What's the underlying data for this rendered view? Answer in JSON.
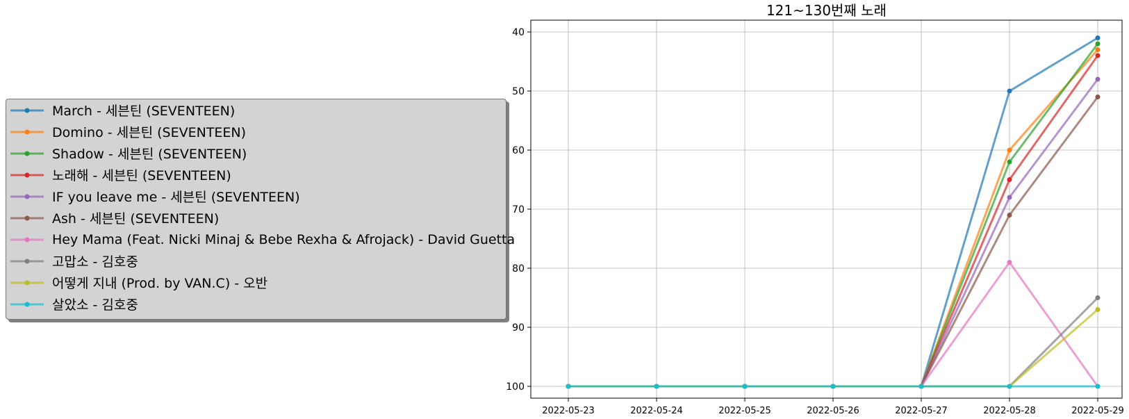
{
  "chart_data": {
    "type": "line",
    "title": "121~130번째 노래",
    "xlabel": "",
    "ylabel": "",
    "x": [
      "2022-05-23",
      "2022-05-24",
      "2022-05-25",
      "2022-05-26",
      "2022-05-27",
      "2022-05-28",
      "2022-05-29"
    ],
    "y_inverted": true,
    "ylim": [
      102,
      38
    ],
    "y_ticks": [
      40,
      50,
      60,
      70,
      80,
      90,
      100
    ],
    "grid": true,
    "legend_placement": "left, outside plot",
    "series": [
      {
        "name": "March - 세븐틴 (SEVENTEEN)",
        "color": "#1f77b4",
        "values": [
          100,
          100,
          100,
          100,
          100,
          50,
          41
        ]
      },
      {
        "name": "Domino - 세븐틴 (SEVENTEEN)",
        "color": "#ff7f0e",
        "values": [
          100,
          100,
          100,
          100,
          100,
          60,
          43
        ]
      },
      {
        "name": "Shadow - 세븐틴 (SEVENTEEN)",
        "color": "#2ca02c",
        "values": [
          100,
          100,
          100,
          100,
          100,
          62,
          42
        ]
      },
      {
        "name": "노래해 - 세븐틴 (SEVENTEEN)",
        "color": "#d62728",
        "values": [
          100,
          100,
          100,
          100,
          100,
          65,
          44
        ]
      },
      {
        "name": "IF you leave me - 세븐틴 (SEVENTEEN)",
        "color": "#9467bd",
        "values": [
          100,
          100,
          100,
          100,
          100,
          68,
          48
        ]
      },
      {
        "name": "Ash - 세븐틴 (SEVENTEEN)",
        "color": "#8c564b",
        "values": [
          100,
          100,
          100,
          100,
          100,
          71,
          51
        ]
      },
      {
        "name": "Hey Mama (Feat. Nicki Minaj & Bebe Rexha & Afrojack) - David Guetta",
        "color": "#e377c2",
        "values": [
          100,
          100,
          100,
          100,
          100,
          79,
          100
        ]
      },
      {
        "name": "고맙소 - 김호중",
        "color": "#7f7f7f",
        "values": [
          100,
          100,
          100,
          100,
          100,
          100,
          85
        ]
      },
      {
        "name": "어떻게 지내 (Prod. by VAN.C) - 오반",
        "color": "#bcbd22",
        "values": [
          100,
          100,
          100,
          100,
          100,
          100,
          87
        ]
      },
      {
        "name": "살았소 - 김호중",
        "color": "#17becf",
        "values": [
          100,
          100,
          100,
          100,
          100,
          100,
          100
        ]
      }
    ]
  }
}
